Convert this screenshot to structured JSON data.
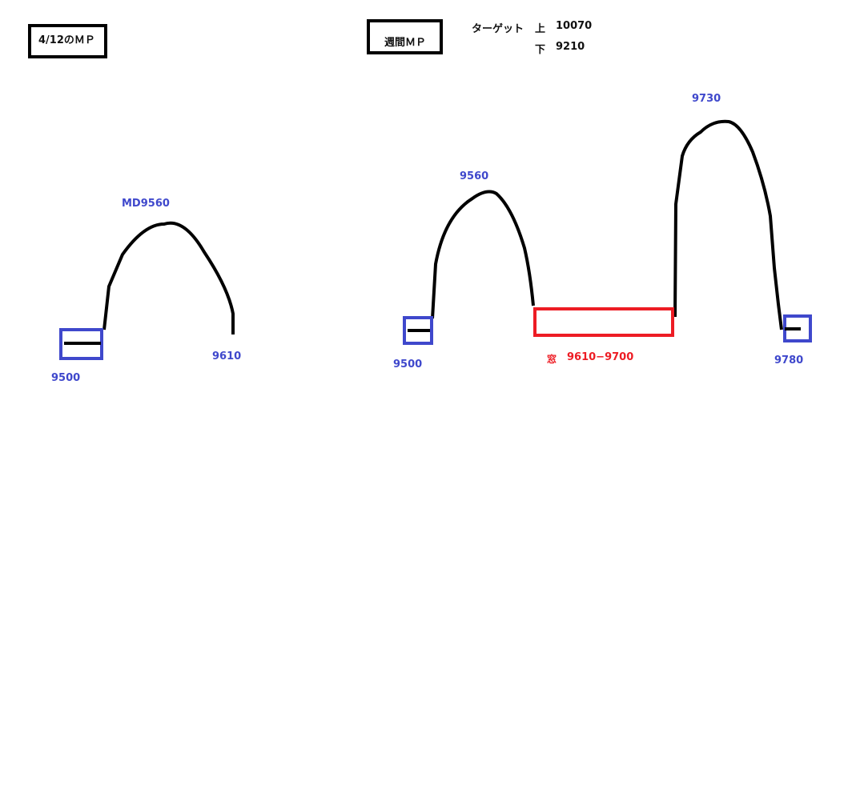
{
  "left": {
    "title": "4/12のＭＰ",
    "peak": "MD9560",
    "start": "9500",
    "end": "9610"
  },
  "right": {
    "title": "週間ＭＰ",
    "target_label": "ターゲット",
    "upper_label": "上",
    "upper_value": "10070",
    "lower_label": "下",
    "lower_value": "9210",
    "peak1": "9560",
    "peak2": "9730",
    "start": "9500",
    "end": "9780",
    "window_label": "窓",
    "window_range": "9610−9700"
  },
  "colors": {
    "line": "#000000",
    "box": "#3f48cc",
    "window": "#ed1c24"
  }
}
